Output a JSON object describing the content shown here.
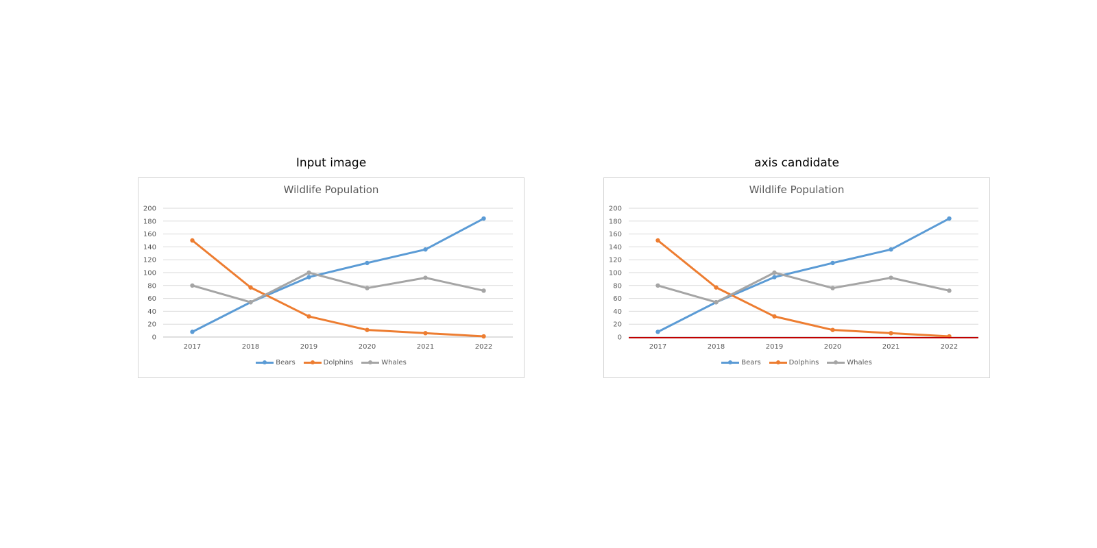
{
  "panels": {
    "left": {
      "caption": "Input image"
    },
    "right": {
      "caption": "axis candidate"
    }
  },
  "colors": {
    "bears": "#5b9bd5",
    "dolphins": "#ed7d31",
    "whales": "#a5a5a5",
    "grid": "#d9d9d9",
    "axis_highlight": "#c00000"
  },
  "chart_data": [
    {
      "type": "line",
      "title": "Wildlife Population",
      "categories": [
        "2017",
        "2018",
        "2019",
        "2020",
        "2021",
        "2022"
      ],
      "series": [
        {
          "name": "Bears",
          "values": [
            8,
            54,
            93,
            115,
            136,
            184
          ]
        },
        {
          "name": "Dolphins",
          "values": [
            150,
            77,
            32,
            11,
            6,
            1
          ]
        },
        {
          "name": "Whales",
          "values": [
            80,
            54,
            100,
            76,
            92,
            72
          ]
        }
      ],
      "ylim": [
        0,
        200
      ],
      "yticks": [
        "0",
        "20",
        "40",
        "60",
        "80",
        "100",
        "120",
        "140",
        "160",
        "180",
        "200"
      ],
      "grid": true,
      "legend": "bottom"
    },
    {
      "type": "line",
      "title": "Wildlife Population",
      "categories": [
        "2017",
        "2018",
        "2019",
        "2020",
        "2021",
        "2022"
      ],
      "series": [
        {
          "name": "Bears",
          "values": [
            8,
            54,
            93,
            115,
            136,
            184
          ]
        },
        {
          "name": "Dolphins",
          "values": [
            150,
            77,
            32,
            11,
            6,
            1
          ]
        },
        {
          "name": "Whales",
          "values": [
            80,
            54,
            100,
            76,
            92,
            72
          ]
        }
      ],
      "ylim": [
        0,
        200
      ],
      "yticks": [
        "0",
        "20",
        "40",
        "60",
        "80",
        "100",
        "120",
        "140",
        "160",
        "180",
        "200"
      ],
      "grid": true,
      "legend": "bottom",
      "highlight": "x-axis"
    }
  ]
}
